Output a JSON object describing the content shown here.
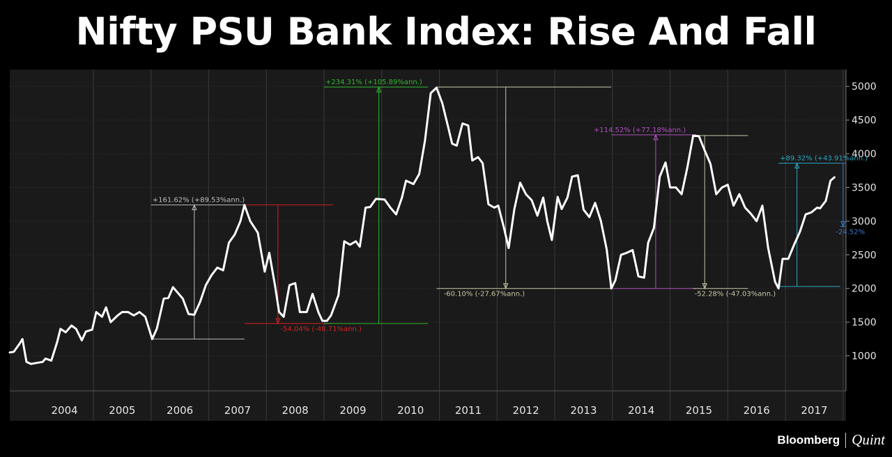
{
  "page": {
    "title": "Nifty PSU Bank Index: Rise And Fall",
    "brand_primary": "Bloomberg",
    "brand_secondary": "Quint"
  },
  "colors": {
    "background": "#000000",
    "plot_background": "#1a1a1a",
    "line": "#ffffff",
    "grid": "#3a3a3a",
    "annotation_2007": "#bdbdbd",
    "annotation_2008": "#d42020",
    "annotation_2010": "#2eb82e",
    "annotation_2012": "#c8c8a8",
    "annotation_2014": "#b050c0",
    "annotation_2015": "#c8c8a8",
    "annotation_2017": "#2aa7c4",
    "annotation_2017_fall": "#3a78c8"
  },
  "chart_data": {
    "type": "line",
    "title": "",
    "xlabel": "",
    "ylabel": "",
    "x_ticks": [
      "2004",
      "2005",
      "2006",
      "2007",
      "2008",
      "2009",
      "2010",
      "2011",
      "2012",
      "2013",
      "2014",
      "2015",
      "2016",
      "2017"
    ],
    "y_ticks": [
      1000,
      1500,
      2000,
      2500,
      3000,
      3500,
      4000,
      4500,
      5000
    ],
    "ylim": [
      500,
      5250
    ],
    "xlim": [
      2003.55,
      2017.85
    ],
    "grid": true,
    "y_axis_position": "right",
    "series": [
      {
        "points": [
          [
            2003.55,
            1050
          ],
          [
            2003.62,
            1060
          ],
          [
            2003.72,
            1180
          ],
          [
            2003.77,
            1250
          ],
          [
            2003.84,
            910
          ],
          [
            2003.92,
            880
          ],
          [
            2004.02,
            895
          ],
          [
            2004.12,
            910
          ],
          [
            2004.17,
            960
          ],
          [
            2004.27,
            930
          ],
          [
            2004.37,
            1200
          ],
          [
            2004.43,
            1400
          ],
          [
            2004.52,
            1350
          ],
          [
            2004.62,
            1450
          ],
          [
            2004.7,
            1400
          ],
          [
            2004.8,
            1230
          ],
          [
            2004.87,
            1360
          ],
          [
            2004.98,
            1390
          ],
          [
            2005.05,
            1650
          ],
          [
            2005.15,
            1580
          ],
          [
            2005.22,
            1720
          ],
          [
            2005.3,
            1500
          ],
          [
            2005.42,
            1600
          ],
          [
            2005.5,
            1650
          ],
          [
            2005.6,
            1650
          ],
          [
            2005.7,
            1600
          ],
          [
            2005.8,
            1650
          ],
          [
            2005.9,
            1580
          ],
          [
            2006.02,
            1250
          ],
          [
            2006.1,
            1400
          ],
          [
            2006.22,
            1850
          ],
          [
            2006.3,
            1860
          ],
          [
            2006.38,
            2020
          ],
          [
            2006.55,
            1850
          ],
          [
            2006.65,
            1620
          ],
          [
            2006.75,
            1610
          ],
          [
            2006.85,
            1800
          ],
          [
            2006.95,
            2050
          ],
          [
            2007.05,
            2200
          ],
          [
            2007.15,
            2310
          ],
          [
            2007.25,
            2270
          ],
          [
            2007.35,
            2680
          ],
          [
            2007.45,
            2800
          ],
          [
            2007.55,
            3000
          ],
          [
            2007.62,
            3240
          ],
          [
            2007.72,
            3000
          ],
          [
            2007.85,
            2830
          ],
          [
            2007.97,
            2250
          ],
          [
            2008.05,
            2530
          ],
          [
            2008.15,
            2040
          ],
          [
            2008.22,
            1650
          ],
          [
            2008.3,
            1580
          ],
          [
            2008.4,
            2050
          ],
          [
            2008.5,
            2080
          ],
          [
            2008.58,
            1650
          ],
          [
            2008.7,
            1650
          ],
          [
            2008.8,
            1920
          ],
          [
            2008.9,
            1650
          ],
          [
            2008.97,
            1520
          ],
          [
            2009.05,
            1520
          ],
          [
            2009.12,
            1600
          ],
          [
            2009.25,
            1900
          ],
          [
            2009.35,
            2700
          ],
          [
            2009.45,
            2650
          ],
          [
            2009.55,
            2700
          ],
          [
            2009.62,
            2620
          ],
          [
            2009.72,
            3200
          ],
          [
            2009.8,
            3210
          ],
          [
            2009.9,
            3330
          ],
          [
            2010.05,
            3320
          ],
          [
            2010.15,
            3200
          ],
          [
            2010.25,
            3100
          ],
          [
            2010.35,
            3350
          ],
          [
            2010.42,
            3600
          ],
          [
            2010.55,
            3550
          ],
          [
            2010.65,
            3700
          ],
          [
            2010.75,
            4200
          ],
          [
            2010.85,
            4900
          ],
          [
            2010.95,
            4980
          ],
          [
            2011.05,
            4750
          ],
          [
            2011.15,
            4400
          ],
          [
            2011.22,
            4150
          ],
          [
            2011.3,
            4120
          ],
          [
            2011.4,
            4450
          ],
          [
            2011.5,
            4420
          ],
          [
            2011.57,
            3900
          ],
          [
            2011.67,
            3950
          ],
          [
            2011.75,
            3860
          ],
          [
            2011.85,
            3250
          ],
          [
            2011.95,
            3200
          ],
          [
            2012.02,
            3230
          ],
          [
            2012.12,
            2900
          ],
          [
            2012.2,
            2600
          ],
          [
            2012.3,
            3180
          ],
          [
            2012.4,
            3570
          ],
          [
            2012.5,
            3400
          ],
          [
            2012.6,
            3310
          ],
          [
            2012.7,
            3080
          ],
          [
            2012.8,
            3350
          ],
          [
            2012.87,
            3000
          ],
          [
            2012.95,
            2720
          ],
          [
            2013.05,
            3360
          ],
          [
            2013.12,
            3180
          ],
          [
            2013.22,
            3350
          ],
          [
            2013.3,
            3660
          ],
          [
            2013.4,
            3680
          ],
          [
            2013.5,
            3170
          ],
          [
            2013.6,
            3060
          ],
          [
            2013.7,
            3270
          ],
          [
            2013.8,
            3000
          ],
          [
            2013.9,
            2580
          ],
          [
            2013.98,
            2000
          ],
          [
            2014.05,
            2120
          ],
          [
            2014.15,
            2500
          ],
          [
            2014.25,
            2530
          ],
          [
            2014.35,
            2570
          ],
          [
            2014.45,
            2180
          ],
          [
            2014.55,
            2160
          ],
          [
            2014.62,
            2680
          ],
          [
            2014.72,
            2900
          ],
          [
            2014.82,
            3660
          ],
          [
            2014.92,
            3870
          ],
          [
            2015.0,
            3500
          ],
          [
            2015.1,
            3500
          ],
          [
            2015.2,
            3400
          ],
          [
            2015.3,
            3800
          ],
          [
            2015.4,
            4270
          ],
          [
            2015.5,
            4260
          ],
          [
            2015.6,
            4050
          ],
          [
            2015.7,
            3850
          ],
          [
            2015.8,
            3400
          ],
          [
            2015.9,
            3500
          ],
          [
            2016.0,
            3540
          ],
          [
            2016.1,
            3230
          ],
          [
            2016.2,
            3400
          ],
          [
            2016.3,
            3200
          ],
          [
            2016.4,
            3110
          ],
          [
            2016.5,
            3000
          ],
          [
            2016.6,
            3230
          ],
          [
            2016.7,
            2600
          ],
          [
            2016.82,
            2100
          ],
          [
            2016.88,
            2000
          ],
          [
            2016.95,
            2440
          ],
          [
            2017.05,
            2440
          ],
          [
            2017.15,
            2650
          ],
          [
            2017.25,
            2840
          ],
          [
            2017.35,
            3100
          ],
          [
            2017.45,
            3130
          ],
          [
            2017.55,
            3200
          ],
          [
            2017.6,
            3190
          ],
          [
            2017.7,
            3300
          ],
          [
            2017.78,
            3600
          ],
          [
            2017.85,
            3650
          ]
        ]
      }
    ]
  },
  "annotations": [
    {
      "label": "+161.62% (+89.53%ann.)",
      "color_key": "annotation_2007"
    },
    {
      "label": "-54.04% (-48.71%ann.)",
      "color_key": "annotation_2008"
    },
    {
      "label": "+234.31% (+105.89%ann.)",
      "color_key": "annotation_2010"
    },
    {
      "label": "-60.10% (-27.67%ann.)",
      "color_key": "annotation_2012"
    },
    {
      "label": "+114.52% (+77.18%ann.)",
      "color_key": "annotation_2014"
    },
    {
      "label": "-52.28% (-47.03%ann.)",
      "color_key": "annotation_2015"
    },
    {
      "label": "+89.32% (+43.91%ann.)",
      "color_key": "annotation_2017"
    },
    {
      "label": "-24.52%",
      "color_key": "annotation_2017_fall"
    }
  ]
}
